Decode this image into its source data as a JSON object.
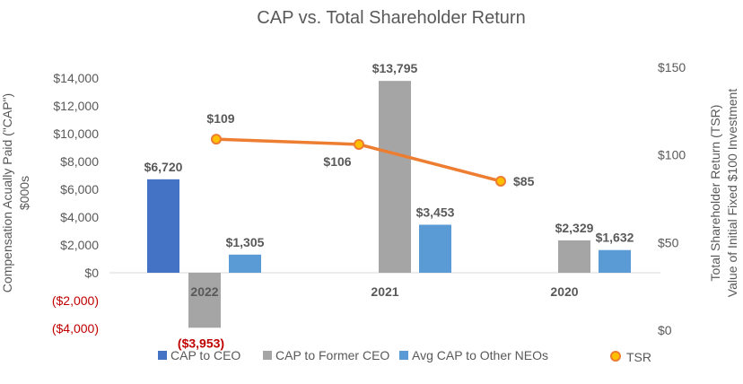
{
  "chart_data": {
    "type": "bar",
    "title": "CAP vs. Total Shareholder Return",
    "categories": [
      "2022",
      "2021",
      "2020"
    ],
    "ylabel": [
      "Compensation Acually Paid (\"CAP\")",
      "$000s"
    ],
    "y2label": [
      "Total Shareholder Return (TSR)",
      "Value of Initial Fixed $100 Investment"
    ],
    "ylim": [
      -4000,
      14000
    ],
    "yticks": [
      -4000,
      -2000,
      0,
      2000,
      4000,
      6000,
      8000,
      10000,
      12000,
      14000
    ],
    "ytick_labels": [
      "($4,000)",
      "($2,000)",
      "$0",
      "$2,000",
      "$4,000",
      "$6,000",
      "$8,000",
      "$10,000",
      "$12,000",
      "$14,000"
    ],
    "y2lim": [
      0,
      150
    ],
    "y2ticks": [
      0,
      50,
      100,
      150
    ],
    "y2tick_labels": [
      "$0",
      "$50",
      "$100",
      "$150"
    ],
    "series": [
      {
        "name": "CAP to CEO",
        "color": "#4472C4",
        "values": [
          6720,
          null,
          null
        ],
        "labels": [
          "$6,720",
          "",
          ""
        ]
      },
      {
        "name": "CAP to Former CEO",
        "color": "#A5A5A5",
        "values": [
          -3953,
          13795,
          2329
        ],
        "labels": [
          "($3,953)",
          "$13,795",
          "$2,329"
        ]
      },
      {
        "name": "Avg CAP to Other NEOs",
        "color": "#5B9BD5",
        "values": [
          1305,
          3453,
          1632
        ],
        "labels": [
          "$1,305",
          "$3,453",
          "$1,632"
        ]
      }
    ],
    "line": {
      "name": "TSR",
      "color": "#ED7D31",
      "marker_color": "#FFC000",
      "axis": "secondary",
      "values": [
        109,
        106,
        85
      ],
      "labels": [
        "$109",
        "$106",
        "$85"
      ]
    },
    "negative_label_color": "#C00000",
    "legend_position": "bottom",
    "grid": false
  }
}
